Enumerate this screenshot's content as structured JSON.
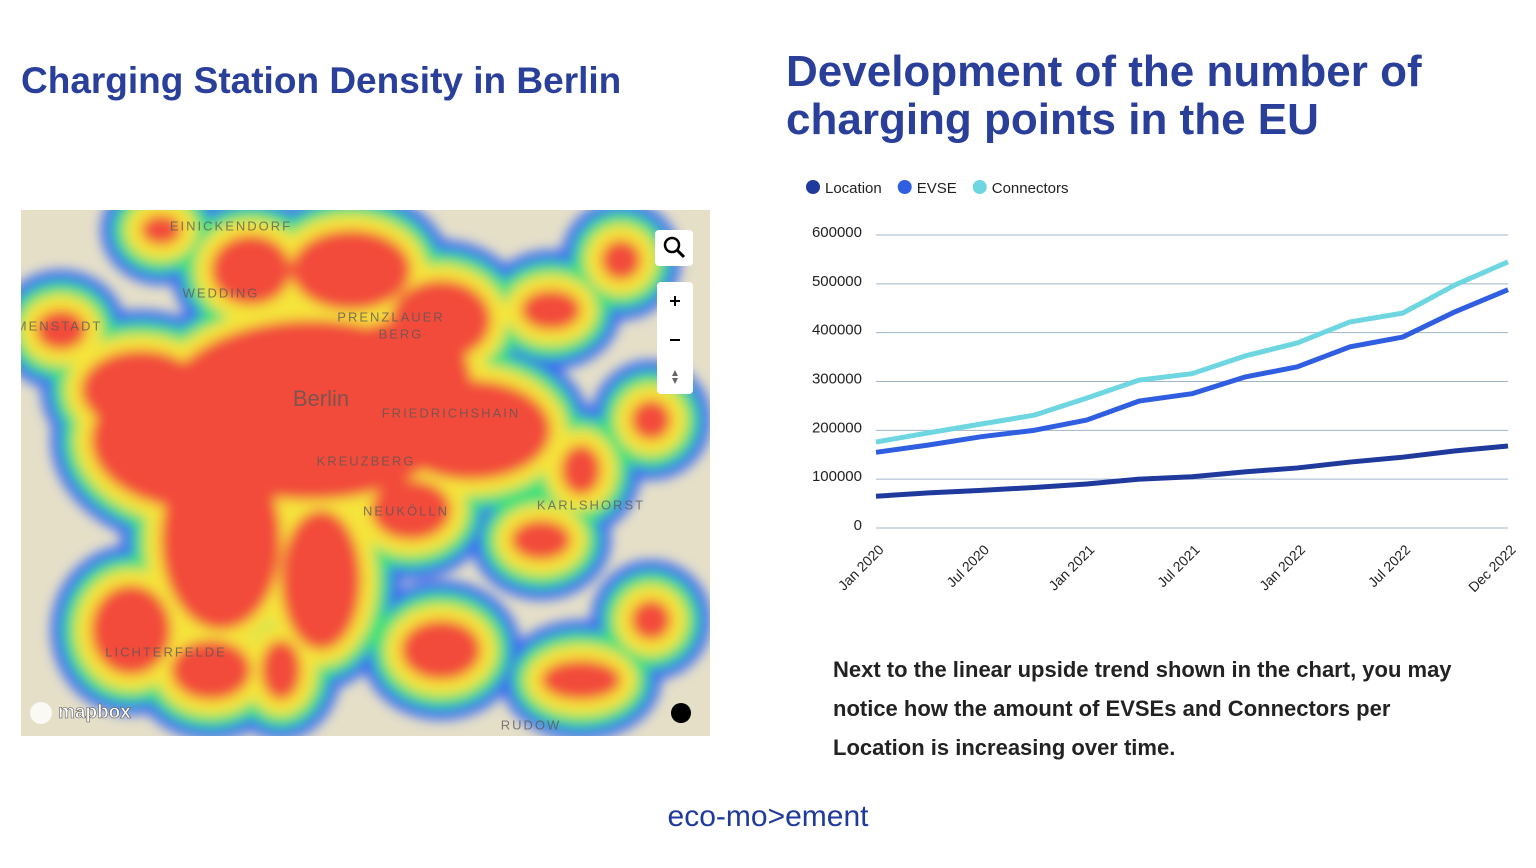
{
  "map": {
    "title": "Charging Station Density in Berlin",
    "labels": [
      "EINICKENDORF",
      "WEDDING",
      "MENSTADT",
      "PRENZLAUER",
      "BERG",
      "Berlin",
      "FRIEDRICHSHAIN",
      "KREUZBERG",
      "NEUKÖLLN",
      "KARLSHORST",
      "LICHTERFELDE",
      "RUDOW"
    ],
    "attribution": "mapbox"
  },
  "chart_data": {
    "type": "line",
    "title": "Development of the number of charging points in the EU",
    "categories": [
      "Jan 2020",
      null,
      "Jul 2020",
      null,
      "Jan 2021",
      null,
      "Jul 2021",
      null,
      "Jan 2022",
      null,
      "Jul 2022",
      null,
      "Dec 2022"
    ],
    "series": [
      {
        "name": "Location",
        "color": "#1f3a9c",
        "values": [
          65000,
          72000,
          77000,
          83000,
          90000,
          100000,
          105000,
          115000,
          123000,
          135000,
          145000,
          158000,
          168000
        ]
      },
      {
        "name": "EVSE",
        "color": "#2f5fe0",
        "values": [
          155000,
          170000,
          187000,
          200000,
          221000,
          260000,
          275000,
          309000,
          330000,
          371000,
          391000,
          443000,
          488000
        ]
      },
      {
        "name": "Connectors",
        "color": "#6dd6e0",
        "values": [
          176000,
          195000,
          213000,
          231000,
          266000,
          303000,
          316000,
          352000,
          379000,
          422000,
          440000,
          498000,
          545000
        ]
      }
    ],
    "ylim": [
      0,
      600000
    ],
    "yticks": [
      0,
      100000,
      200000,
      300000,
      400000,
      500000,
      600000
    ],
    "grid": true,
    "legend": "top-left"
  },
  "note": "Next to the linear upside trend shown in the chart, you may notice how the amount of EVSEs and Connectors per Location is increasing over time.",
  "logo": "eco-mo>ement"
}
